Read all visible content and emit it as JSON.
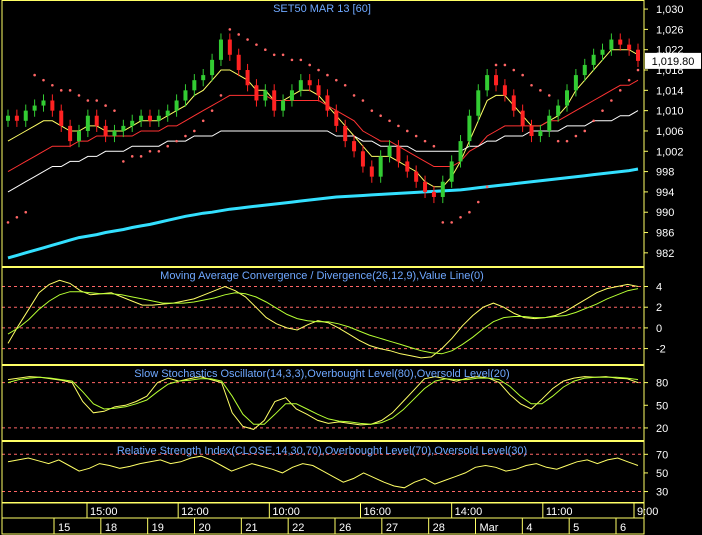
{
  "colors": {
    "background": "#000000",
    "frame": "#ffff66",
    "title": "#6fa8ff",
    "tick_text": "#ffffff",
    "candle_up": "#33cc33",
    "candle_down": "#ff2222",
    "ma_fast": "#ffff66",
    "ma_mid": "#ff3333",
    "ma_slow": "#ffffff",
    "ma_long": "#33e0ff",
    "sar": "#ff6666",
    "osc_line_a": "#ffff66",
    "osc_line_b": "#b6ff33",
    "ref_line": "#ff6666",
    "last_price_box": "#ffffff"
  },
  "chart_data": [
    {
      "type": "candlestick",
      "title": "SET50 MAR 13   [60]",
      "last_price_label": "1,019.80",
      "last_price": 1019.8,
      "ylim": [
        980,
        1031
      ],
      "yticks": [
        982,
        986,
        990,
        994,
        998,
        1002,
        1006,
        1010,
        1014,
        1018,
        1022,
        1026,
        1030
      ],
      "ytick_labels": [
        "982",
        "986",
        "990",
        "994",
        "998",
        "1,002",
        "1,006",
        "1,010",
        "1,014",
        "1,018",
        "1,022",
        "1,026",
        "1,030"
      ],
      "close": [
        1009,
        1008,
        1010,
        1011,
        1012,
        1010,
        1007,
        1004,
        1006,
        1009,
        1007,
        1005,
        1006,
        1007,
        1008,
        1009,
        1008,
        1009,
        1010,
        1012,
        1014,
        1016,
        1017,
        1020,
        1024,
        1021,
        1018,
        1015,
        1012,
        1014,
        1010,
        1012,
        1014,
        1016,
        1015,
        1013,
        1010,
        1007,
        1004,
        1002,
        999,
        997,
        1001,
        1003,
        1000,
        998,
        996,
        994,
        993,
        996,
        1000,
        1004,
        1009,
        1014,
        1017,
        1015,
        1013,
        1010,
        1007,
        1005,
        1006,
        1009,
        1011,
        1014,
        1017,
        1019,
        1021,
        1022,
        1024,
        1023,
        1022,
        1019.8
      ],
      "open": [
        1008,
        1009,
        1008,
        1010,
        1011,
        1012,
        1010,
        1007,
        1004,
        1006,
        1009,
        1007,
        1005,
        1006,
        1007,
        1008,
        1009,
        1008,
        1009,
        1010,
        1012,
        1014,
        1016,
        1017,
        1020,
        1024,
        1021,
        1018,
        1015,
        1012,
        1014,
        1010,
        1012,
        1014,
        1016,
        1015,
        1013,
        1010,
        1007,
        1004,
        1002,
        999,
        997,
        1001,
        1003,
        1000,
        998,
        996,
        994,
        993,
        996,
        1000,
        1004,
        1009,
        1014,
        1017,
        1015,
        1013,
        1010,
        1007,
        1005,
        1006,
        1009,
        1011,
        1014,
        1017,
        1019,
        1021,
        1022,
        1024,
        1023,
        1022
      ],
      "series": [
        {
          "values": [
            1004,
            1005,
            1006,
            1007,
            1008,
            1008,
            1007,
            1006,
            1006,
            1007,
            1007,
            1006,
            1006,
            1006,
            1007,
            1008,
            1008,
            1008,
            1009,
            1010,
            1011,
            1013,
            1014,
            1016,
            1018,
            1018,
            1017,
            1016,
            1014,
            1014,
            1012,
            1012,
            1013,
            1014,
            1014,
            1013,
            1011,
            1009,
            1007,
            1005,
            1003,
            1001,
            1001,
            1001,
            1000,
            999,
            998,
            996,
            995,
            995,
            997,
            1000,
            1004,
            1008,
            1012,
            1013,
            1013,
            1011,
            1009,
            1007,
            1007,
            1008,
            1009,
            1011,
            1014,
            1016,
            1018,
            1020,
            1022,
            1022,
            1022,
            1021
          ]
        },
        {
          "values": [
            998,
            999,
            1000,
            1001,
            1002,
            1003,
            1003,
            1003,
            1004,
            1004,
            1005,
            1005,
            1005,
            1005,
            1005,
            1006,
            1006,
            1006,
            1007,
            1007,
            1008,
            1009,
            1010,
            1011,
            1012,
            1013,
            1013,
            1013,
            1013,
            1013,
            1012,
            1012,
            1012,
            1012,
            1012,
            1012,
            1011,
            1010,
            1009,
            1008,
            1006,
            1005,
            1004,
            1004,
            1003,
            1002,
            1001,
            1000,
            999,
            999,
            999,
            1000,
            1002,
            1003,
            1005,
            1006,
            1007,
            1007,
            1007,
            1007,
            1007,
            1008,
            1008,
            1009,
            1010,
            1011,
            1012,
            1013,
            1014,
            1015,
            1015,
            1016
          ]
        },
        {
          "values": [
            994,
            995,
            996,
            997,
            998,
            999,
            999,
            1000,
            1000,
            1001,
            1001,
            1002,
            1002,
            1002,
            1003,
            1003,
            1003,
            1003,
            1004,
            1004,
            1004,
            1005,
            1005,
            1005,
            1006,
            1006,
            1006,
            1006,
            1006,
            1006,
            1006,
            1006,
            1006,
            1006,
            1006,
            1006,
            1006,
            1005,
            1005,
            1005,
            1004,
            1004,
            1003,
            1003,
            1003,
            1003,
            1002,
            1002,
            1002,
            1002,
            1002,
            1002,
            1003,
            1003,
            1004,
            1004,
            1005,
            1005,
            1005,
            1006,
            1006,
            1006,
            1006,
            1007,
            1007,
            1007,
            1008,
            1008,
            1008,
            1009,
            1009,
            1010
          ]
        },
        {
          "values": [
            981,
            981.5,
            982,
            982.5,
            983,
            983.5,
            984,
            984.5,
            985,
            985.3,
            985.6,
            986,
            986.3,
            986.6,
            987,
            987.3,
            987.6,
            988,
            988.4,
            988.8,
            989.2,
            989.5,
            989.8,
            990,
            990.3,
            990.6,
            990.8,
            991,
            991.2,
            991.4,
            991.6,
            991.8,
            992,
            992.2,
            992.4,
            992.6,
            992.8,
            993,
            993.1,
            993.2,
            993.3,
            993.4,
            993.5,
            993.6,
            993.7,
            993.8,
            993.9,
            994,
            994.1,
            994.2,
            994.3,
            994.4,
            994.6,
            994.8,
            995,
            995.2,
            995.4,
            995.6,
            995.8,
            996,
            996.2,
            996.4,
            996.6,
            996.8,
            997,
            997.2,
            997.4,
            997.6,
            997.8,
            998,
            998.2,
            998.5
          ]
        }
      ],
      "sar": [
        988,
        989,
        990,
        1017,
        1016,
        1015,
        1014,
        1014,
        1013,
        1012,
        1012,
        1011,
        1010,
        1000,
        1001,
        1001,
        1002,
        1002,
        1003,
        1004,
        1005,
        1006,
        1008,
        1010,
        1013,
        1026,
        1025,
        1024,
        1023,
        1022,
        1021,
        1021,
        1020,
        1020,
        1019,
        1018,
        1017,
        1016,
        1015,
        1013,
        1012,
        1010,
        1009,
        1008,
        1007,
        1006,
        1005,
        1004,
        1003,
        988,
        988,
        989,
        990,
        992,
        995,
        1019,
        1019,
        1018,
        1017,
        1015,
        1014,
        1013,
        1004,
        1004,
        1005,
        1006,
        1008,
        1010,
        1012,
        1014,
        1016,
        1018
      ]
    },
    {
      "type": "line",
      "title": "Moving Average Convergence / Divergence(26,12,9),Value Line(0)",
      "ylim": [
        -3.2,
        5.5
      ],
      "yticks": [
        -2,
        0,
        2,
        4
      ],
      "ytick_labels": [
        "-2",
        "0",
        "2",
        "4"
      ],
      "ref_lines": [
        -2,
        0,
        2,
        4
      ],
      "series": [
        {
          "values": [
            -1.5,
            0.2,
            1.8,
            3.4,
            4.2,
            4.6,
            4.3,
            3.6,
            3.2,
            3.3,
            3.4,
            3.0,
            2.6,
            2.2,
            2.2,
            2.3,
            2.4,
            2.6,
            2.8,
            3.2,
            3.6,
            4.0,
            3.6,
            3.0,
            2.0,
            1.0,
            0.4,
            0.0,
            -0.2,
            0.3,
            0.7,
            0.5,
            0.0,
            -0.6,
            -1.2,
            -1.7,
            -2.0,
            -2.2,
            -2.5,
            -2.7,
            -2.9,
            -2.8,
            -2.0,
            -1.0,
            0.2,
            1.2,
            2.0,
            2.4,
            2.0,
            1.4,
            1.0,
            0.9,
            1.0,
            1.2,
            1.6,
            2.2,
            2.8,
            3.4,
            3.8,
            4.0,
            4.2,
            4.0
          ]
        },
        {
          "values": [
            -0.6,
            0.0,
            0.8,
            1.8,
            2.6,
            3.2,
            3.5,
            3.5,
            3.4,
            3.3,
            3.3,
            3.2,
            3.0,
            2.8,
            2.6,
            2.4,
            2.4,
            2.4,
            2.5,
            2.7,
            2.9,
            3.2,
            3.4,
            3.3,
            3.0,
            2.5,
            1.9,
            1.3,
            0.9,
            0.7,
            0.6,
            0.6,
            0.4,
            0.1,
            -0.3,
            -0.7,
            -1.0,
            -1.3,
            -1.6,
            -1.9,
            -2.2,
            -2.4,
            -2.5,
            -2.2,
            -1.6,
            -0.9,
            -0.1,
            0.6,
            1.0,
            1.1,
            1.1,
            1.0,
            1.0,
            1.1,
            1.2,
            1.5,
            1.9,
            2.3,
            2.8,
            3.2,
            3.6,
            3.8
          ]
        }
      ]
    },
    {
      "type": "line",
      "title": "Slow Stochastics Oscillator(14,3,3),Overbought Level(80),Oversold Level(20)",
      "ylim": [
        8,
        98
      ],
      "yticks": [
        20,
        50,
        80
      ],
      "ytick_labels": [
        "20",
        "50",
        "80"
      ],
      "ref_lines": [
        20,
        80
      ],
      "series": [
        {
          "values": [
            84,
            86,
            88,
            87,
            85,
            83,
            80,
            55,
            40,
            42,
            48,
            50,
            55,
            62,
            80,
            86,
            82,
            85,
            88,
            84,
            80,
            40,
            22,
            18,
            30,
            55,
            60,
            45,
            38,
            30,
            26,
            28,
            26,
            24,
            25,
            30,
            40,
            55,
            70,
            85,
            88,
            85,
            82,
            86,
            88,
            86,
            80,
            64,
            52,
            45,
            58,
            72,
            82,
            86,
            88,
            87,
            88,
            86,
            85,
            80
          ]
        },
        {
          "values": [
            80,
            84,
            86,
            87,
            86,
            84,
            82,
            68,
            52,
            45,
            46,
            48,
            52,
            57,
            68,
            78,
            82,
            83,
            85,
            85,
            82,
            62,
            38,
            25,
            25,
            38,
            52,
            52,
            45,
            38,
            32,
            29,
            28,
            26,
            25,
            27,
            33,
            44,
            58,
            72,
            82,
            85,
            84,
            84,
            86,
            86,
            84,
            75,
            62,
            52,
            52,
            62,
            74,
            82,
            86,
            87,
            87,
            87,
            86,
            84
          ]
        }
      ]
    },
    {
      "type": "line",
      "title": "Relative Strength Index(CLOSE,14,30,70),Overbought Level(70),Oversold Level(30)",
      "ylim": [
        22,
        80
      ],
      "yticks": [
        30,
        50,
        70
      ],
      "ytick_labels": [
        "30",
        "50",
        "70"
      ],
      "ref_lines": [
        30,
        70
      ],
      "series": [
        {
          "values": [
            62,
            64,
            66,
            63,
            60,
            64,
            58,
            52,
            55,
            60,
            58,
            55,
            57,
            60,
            62,
            64,
            60,
            62,
            66,
            68,
            64,
            58,
            52,
            56,
            60,
            57,
            54,
            50,
            56,
            60,
            58,
            52,
            46,
            40,
            44,
            50,
            45,
            40,
            36,
            34,
            40,
            44,
            38,
            42,
            46,
            50,
            56,
            58,
            56,
            52,
            54,
            58,
            60,
            56,
            54,
            58,
            62,
            64,
            60,
            64,
            66,
            62,
            58
          ]
        }
      ]
    }
  ],
  "x_axis": {
    "time_labels": [
      "15:00",
      "12:00",
      "10:00",
      "16:00",
      "14:00",
      "11:00",
      "9:00"
    ],
    "date_labels": [
      "15",
      "18",
      "19",
      "20",
      "21",
      "22",
      "26",
      "27",
      "28",
      "Mar",
      "4",
      "5",
      "6"
    ]
  }
}
